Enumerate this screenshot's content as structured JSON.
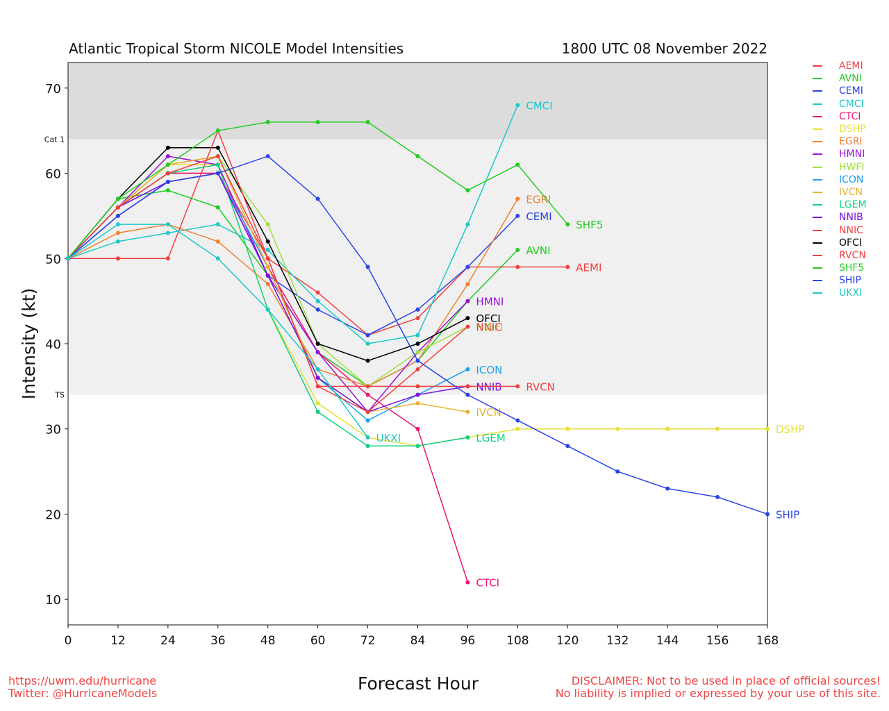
{
  "header": {
    "title": "Atlantic Tropical Storm NICOLE Model Intensities",
    "datetime": "1800 UTC 08 November 2022"
  },
  "footer": {
    "url": "https://uwm.edu/hurricane",
    "twitter": "Twitter: @HurricaneModels",
    "disclaimer_line1": "DISCLAIMER: Not to be used in place of official sources!",
    "disclaimer_line2": "No liability is implied or expressed by your use of this site."
  },
  "chart_data": {
    "type": "line",
    "title": "Atlantic Tropical Storm NICOLE Model Intensities",
    "subtitle": "1800 UTC 08 November 2022",
    "xlabel": "Forecast Hour",
    "ylabel": "Intensity (kt)",
    "xlim": [
      0,
      168
    ],
    "ylim": [
      7,
      73
    ],
    "xticks": [
      0,
      12,
      24,
      36,
      48,
      60,
      72,
      84,
      96,
      108,
      120,
      132,
      144,
      156,
      168
    ],
    "yticks": [
      10,
      20,
      30,
      40,
      50,
      60,
      70
    ],
    "bands": [
      {
        "label": "Cat 1",
        "from": 64,
        "to": 73,
        "color": "#dcdcdc"
      },
      {
        "label": "TS",
        "from": 34,
        "to": 64,
        "color": "#f0f0f0"
      }
    ],
    "legend_position": "right-outside",
    "x": [
      0,
      12,
      24,
      36,
      48,
      60,
      72,
      84,
      96,
      108,
      120,
      132,
      144,
      156,
      168
    ],
    "series": [
      {
        "name": "AEMI",
        "color": "#f04040",
        "values": [
          50,
          56,
          60,
          60,
          50,
          46,
          41,
          43,
          49,
          49,
          49
        ]
      },
      {
        "name": "AVNI",
        "color": "#22cc22",
        "values": [
          50,
          57,
          58,
          56,
          48,
          39,
          35,
          38,
          45,
          51
        ]
      },
      {
        "name": "CEMI",
        "color": "#2a44e8",
        "values": [
          50,
          55,
          59,
          60,
          48,
          44,
          41,
          44,
          49,
          55
        ]
      },
      {
        "name": "CMCI",
        "color": "#1cc8c8",
        "values": [
          50,
          52,
          53,
          54,
          51,
          45,
          40,
          41,
          54,
          68
        ]
      },
      {
        "name": "CTCI",
        "color": "#ee1177",
        "values": [
          50,
          56,
          60,
          60,
          49,
          39,
          34,
          30,
          12
        ]
      },
      {
        "name": "DSHP",
        "color": "#e8e030",
        "values": [
          50,
          56,
          61,
          61,
          44,
          33,
          29,
          28,
          29,
          30,
          30,
          30,
          30,
          30,
          30
        ]
      },
      {
        "name": "EGRI",
        "color": "#f08030",
        "values": [
          50,
          53,
          54,
          52,
          47,
          37,
          35,
          38,
          47,
          57
        ]
      },
      {
        "name": "HMNI",
        "color": "#9a10d8",
        "values": [
          50,
          56,
          62,
          61,
          48,
          39,
          32,
          39,
          45
        ]
      },
      {
        "name": "HWFI",
        "color": "#a0e040",
        "values": [
          50,
          56,
          61,
          62,
          54,
          40,
          35,
          39,
          42
        ]
      },
      {
        "name": "ICON",
        "color": "#1aa0f0",
        "values": [
          50,
          56,
          59,
          60,
          49,
          36,
          31,
          34,
          37
        ]
      },
      {
        "name": "IVCN",
        "color": "#e8b030",
        "values": [
          50,
          56,
          61,
          62,
          49,
          36,
          32,
          33,
          32
        ]
      },
      {
        "name": "LGEM",
        "color": "#10d080",
        "values": [
          50,
          56,
          60,
          61,
          44,
          32,
          28,
          28,
          29
        ]
      },
      {
        "name": "NNIB",
        "color": "#7a10e0",
        "values": [
          50,
          56,
          59,
          60,
          48,
          36,
          32,
          34,
          35
        ]
      },
      {
        "name": "NNIC",
        "color": "#f04040",
        "values": [
          50,
          56,
          60,
          62,
          50,
          35,
          32,
          37,
          42
        ]
      },
      {
        "name": "OFCI",
        "color": "#000000",
        "values": [
          50,
          57,
          63,
          63,
          52,
          40,
          38,
          40,
          43
        ]
      },
      {
        "name": "RVCN",
        "color": "#f04040",
        "values": [
          50,
          50,
          50,
          65,
          50,
          35,
          35,
          35,
          35,
          35
        ]
      },
      {
        "name": "SHF5",
        "color": "#22cc22",
        "values": [
          50,
          57,
          61,
          65,
          66,
          66,
          66,
          62,
          58,
          61,
          54
        ]
      },
      {
        "name": "SHIP",
        "color": "#2a44e8",
        "values": [
          50,
          55,
          59,
          60,
          62,
          57,
          49,
          38,
          34,
          31,
          28,
          25,
          23,
          22,
          20
        ]
      },
      {
        "name": "UKXI",
        "color": "#1cc8c8",
        "values": [
          50,
          54,
          54,
          50,
          44,
          37,
          29
        ]
      }
    ],
    "end_labels": [
      {
        "name": "CMCI"
      },
      {
        "name": "EGRI"
      },
      {
        "name": "CEMI"
      },
      {
        "name": "SHF5"
      },
      {
        "name": "AVNI"
      },
      {
        "name": "AEMI"
      },
      {
        "name": "HMNI"
      },
      {
        "name": "OFCI"
      },
      {
        "name": "NNIC"
      },
      {
        "name": "HWFI"
      },
      {
        "name": "ICON"
      },
      {
        "name": "NNIB"
      },
      {
        "name": "RVCN"
      },
      {
        "name": "IVCN"
      },
      {
        "name": "UKXI"
      },
      {
        "name": "LGEM"
      },
      {
        "name": "DSHP"
      },
      {
        "name": "SHIP"
      },
      {
        "name": "CTCI"
      }
    ]
  }
}
